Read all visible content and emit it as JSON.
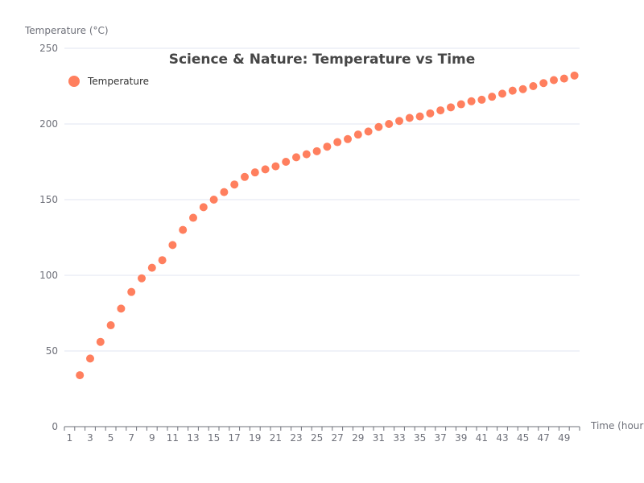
{
  "chart_data": {
    "type": "scatter",
    "title": "Science & Nature: Temperature vs Time",
    "xlabel": "Time (hours)",
    "ylabel": "Temperature (°C)",
    "x_categories": [
      "1",
      "2",
      "3",
      "4",
      "5",
      "6",
      "7",
      "8",
      "9",
      "10",
      "11",
      "12",
      "13",
      "14",
      "15",
      "16",
      "17",
      "18",
      "19",
      "20",
      "21",
      "22",
      "23",
      "24",
      "25",
      "26",
      "27",
      "28",
      "29",
      "30",
      "31",
      "32",
      "33",
      "34",
      "35",
      "36",
      "37",
      "38",
      "39",
      "40",
      "41",
      "42",
      "43",
      "44",
      "45",
      "46",
      "47",
      "48",
      "49",
      "50"
    ],
    "x_tick_labels": [
      "1",
      "3",
      "5",
      "7",
      "9",
      "11",
      "13",
      "15",
      "17",
      "19",
      "21",
      "23",
      "25",
      "27",
      "29",
      "31",
      "33",
      "35",
      "37",
      "39",
      "41",
      "43",
      "45",
      "47",
      "49"
    ],
    "ylim": [
      0,
      250
    ],
    "y_ticks": [
      0,
      50,
      100,
      150,
      200,
      250
    ],
    "grid": "horizontal",
    "legend_position": "top-left",
    "series": [
      {
        "name": "Temperature",
        "color": "#ff7f5e",
        "marker": "circle",
        "x": [
          "2",
          "3",
          "4",
          "5",
          "6",
          "7",
          "8",
          "9",
          "10",
          "11",
          "12",
          "13",
          "14",
          "15",
          "16",
          "17",
          "18",
          "19",
          "20",
          "21",
          "22",
          "23",
          "24",
          "25",
          "26",
          "27",
          "28",
          "29",
          "30",
          "31",
          "32",
          "33",
          "34",
          "35",
          "36",
          "37",
          "38",
          "39",
          "40",
          "41",
          "42",
          "43",
          "44",
          "45",
          "46",
          "47",
          "48",
          "49",
          "50"
        ],
        "values": [
          34,
          45,
          56,
          67,
          78,
          89,
          98,
          105,
          110,
          120,
          130,
          138,
          145,
          150,
          155,
          160,
          165,
          168,
          170,
          172,
          175,
          178,
          180,
          182,
          185,
          188,
          190,
          193,
          195,
          198,
          200,
          202,
          204,
          205,
          207,
          209,
          211,
          213,
          215,
          216,
          218,
          220,
          222,
          223,
          225,
          227,
          229,
          230,
          232
        ]
      }
    ]
  }
}
